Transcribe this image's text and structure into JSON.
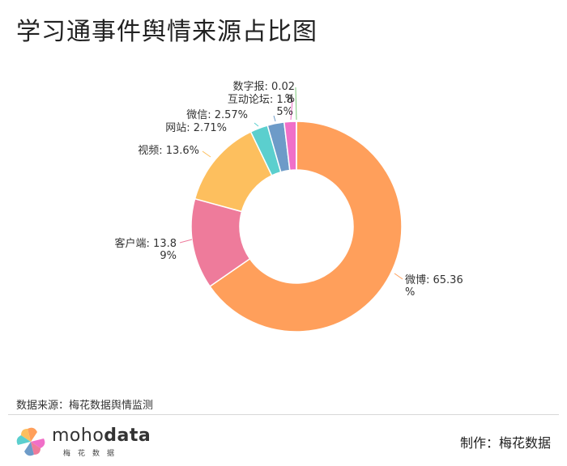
{
  "title": "学习通事件舆情来源占比图",
  "source_note": "数据来源：梅花数据舆情监测",
  "footer": {
    "logo_text_light": "moho",
    "logo_text_bold": "data",
    "logo_subtitle": "梅花数据",
    "credit": "制作：梅花数据"
  },
  "chart_data": {
    "type": "pie",
    "donut": true,
    "title": "学习通事件舆情来源占比图",
    "slices": [
      {
        "name": "微博",
        "value": 65.36,
        "label": [
          "微博: 65.36",
          "%"
        ],
        "color": "#FF9F5B"
      },
      {
        "name": "客户端",
        "value": 13.89,
        "label": [
          "客户端: 13.8",
          "9%"
        ],
        "color": "#EE7B9B"
      },
      {
        "name": "视频",
        "value": 13.6,
        "label": [
          "视频: 13.6%"
        ],
        "color": "#FDBF5E"
      },
      {
        "name": "网站",
        "value": 2.71,
        "label": [
          "网站: 2.71%"
        ],
        "color": "#5BCFCE"
      },
      {
        "name": "微信",
        "value": 2.57,
        "label": [
          "微信: 2.57%"
        ],
        "color": "#6D9BC8"
      },
      {
        "name": "互动论坛",
        "value": 1.85,
        "label": [
          "互动论坛: 1.8",
          "5%"
        ],
        "color": "#F06FC8"
      },
      {
        "name": "数字报",
        "value": 0.02,
        "label": [
          "数字报: 0.02",
          "%"
        ],
        "color": "#7DC97A"
      }
    ]
  }
}
